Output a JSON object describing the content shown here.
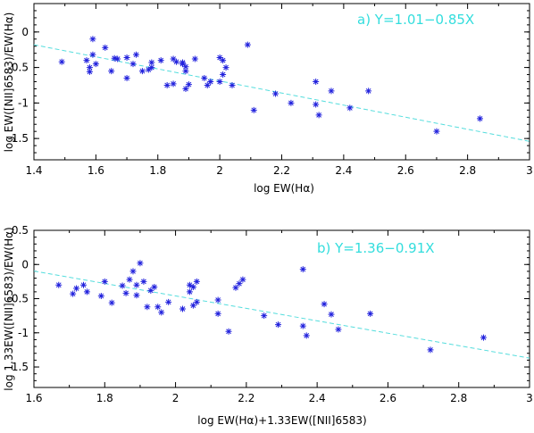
{
  "chart_data": [
    {
      "type": "scatter",
      "panel": "a",
      "title": "",
      "annotation": "a)  Y=1.01−0.85X",
      "annotation_color": "#33dddd",
      "xlabel": "log EW(Hα)",
      "ylabel": "log EW([NII]6583)/EW(Hα)",
      "xlim": [
        1.4,
        3.0
      ],
      "ylim": [
        -1.8,
        0.4
      ],
      "xticks": [
        1.4,
        1.6,
        1.8,
        2.0,
        2.2,
        2.4,
        2.6,
        2.8,
        3.0
      ],
      "xtick_labels": [
        "1.4",
        "1.6",
        "1.8",
        "2",
        "2.2",
        "2.4",
        "2.6",
        "2.8",
        "3"
      ],
      "yticks": [
        -1.5,
        -1.0,
        -0.5,
        0.0
      ],
      "ytick_labels": [
        "-1.5",
        "-1",
        "-0.5",
        "0"
      ],
      "marker_color": "#2222dd",
      "fit": {
        "intercept": 1.01,
        "slope": -0.85,
        "color": "#55dddd"
      },
      "x": [
        1.49,
        1.57,
        1.58,
        1.58,
        1.59,
        1.59,
        1.6,
        1.63,
        1.65,
        1.66,
        1.67,
        1.7,
        1.7,
        1.72,
        1.73,
        1.75,
        1.77,
        1.78,
        1.78,
        1.81,
        1.83,
        1.85,
        1.85,
        1.86,
        1.88,
        1.88,
        1.89,
        1.89,
        1.89,
        1.9,
        1.92,
        1.95,
        1.96,
        1.97,
        2.0,
        2.0,
        2.01,
        2.01,
        2.02,
        2.04,
        2.09,
        2.11,
        2.18,
        2.23,
        2.31,
        2.31,
        2.32,
        2.36,
        2.42,
        2.48,
        2.7,
        2.84
      ],
      "y": [
        -0.42,
        -0.4,
        -0.5,
        -0.56,
        -0.1,
        -0.32,
        -0.45,
        -0.22,
        -0.55,
        -0.37,
        -0.38,
        -0.36,
        -0.65,
        -0.45,
        -0.32,
        -0.55,
        -0.53,
        -0.43,
        -0.5,
        -0.4,
        -0.75,
        -0.38,
        -0.73,
        -0.42,
        -0.43,
        -0.45,
        -0.49,
        -0.55,
        -0.8,
        -0.74,
        -0.38,
        -0.65,
        -0.75,
        -0.7,
        -0.36,
        -0.7,
        -0.4,
        -0.6,
        -0.5,
        -0.75,
        -0.18,
        -1.1,
        -0.87,
        -1.0,
        -0.7,
        -1.02,
        -1.17,
        -0.83,
        -1.07,
        -0.83,
        -1.4,
        -1.22
      ]
    },
    {
      "type": "scatter",
      "panel": "b",
      "title": "",
      "annotation": "b)  Y=1.36−0.91X",
      "annotation_color": "#33dddd",
      "xlabel": "log   EW(Hα)+1.33EW([NII]6583)",
      "ylabel": "log 1.33EW([NII]6583)/EW(Hα)",
      "xlim": [
        1.6,
        3.0
      ],
      "ylim": [
        -1.8,
        0.5
      ],
      "xticks": [
        1.6,
        1.8,
        2.0,
        2.2,
        2.4,
        2.6,
        2.8,
        3.0
      ],
      "xtick_labels": [
        "1.6",
        "1.8",
        "2",
        "2.2",
        "2.4",
        "2.6",
        "2.8",
        "3"
      ],
      "yticks": [
        -1.5,
        -1.0,
        -0.5,
        0.0,
        0.5
      ],
      "ytick_labels": [
        "-1.5",
        "-1",
        "-0.5",
        "0",
        "0.5"
      ],
      "marker_color": "#2222dd",
      "fit": {
        "intercept": 1.36,
        "slope": -0.91,
        "color": "#55dddd"
      },
      "x": [
        1.67,
        1.71,
        1.72,
        1.74,
        1.75,
        1.79,
        1.8,
        1.82,
        1.85,
        1.86,
        1.87,
        1.88,
        1.89,
        1.89,
        1.9,
        1.91,
        1.92,
        1.93,
        1.94,
        1.95,
        1.96,
        1.98,
        2.02,
        2.04,
        2.04,
        2.05,
        2.05,
        2.06,
        2.06,
        2.12,
        2.12,
        2.15,
        2.17,
        2.18,
        2.19,
        2.25,
        2.29,
        2.36,
        2.36,
        2.37,
        2.42,
        2.44,
        2.46,
        2.55,
        2.72,
        2.87
      ],
      "y": [
        -0.3,
        -0.43,
        -0.35,
        -0.3,
        -0.4,
        -0.46,
        -0.25,
        -0.56,
        -0.31,
        -0.42,
        -0.22,
        -0.1,
        -0.3,
        -0.45,
        0.02,
        -0.25,
        -0.62,
        -0.38,
        -0.33,
        -0.62,
        -0.7,
        -0.55,
        -0.65,
        -0.3,
        -0.4,
        -0.33,
        -0.6,
        -0.25,
        -0.55,
        -0.52,
        -0.72,
        -0.98,
        -0.34,
        -0.28,
        -0.22,
        -0.75,
        -0.88,
        -0.07,
        -0.9,
        -1.04,
        -0.58,
        -0.73,
        -0.95,
        -0.72,
        -1.25,
        -1.07
      ]
    }
  ]
}
